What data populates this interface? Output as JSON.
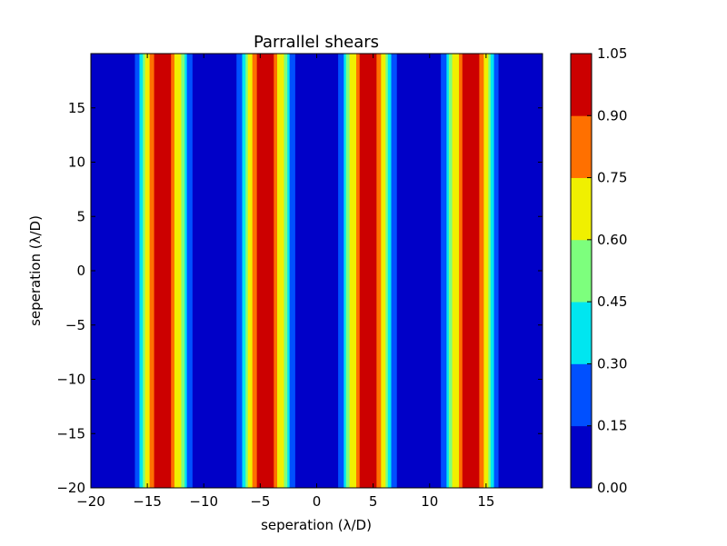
{
  "chart_data": {
    "type": "heatmap",
    "subtype": "filled-contour",
    "title": "Parrallel shears",
    "xlabel": "seperation (λ/D)",
    "ylabel": "seperation (λ/D)",
    "xlim": [
      -20,
      20
    ],
    "ylim": [
      -20,
      20
    ],
    "x_ticks": [
      -20,
      -15,
      -10,
      -5,
      0,
      5,
      10,
      15
    ],
    "x_tick_labels": [
      "−20",
      "−15",
      "−10",
      "−5",
      "0",
      "5",
      "10",
      "15"
    ],
    "y_ticks": [
      -20,
      -15,
      -10,
      -5,
      0,
      5,
      10,
      15
    ],
    "y_tick_labels": [
      "−20",
      "−15",
      "−10",
      "−5",
      "0",
      "5",
      "10",
      "15"
    ],
    "grid": false,
    "pattern": "value varies only with x; constant along y",
    "band_centers_x": [
      -13.5,
      -4.5,
      4.5,
      13.5
    ],
    "colorbar": {
      "levels": [
        0.0,
        0.15,
        0.3,
        0.45,
        0.6,
        0.75,
        0.9,
        1.05
      ],
      "tick_labels": [
        "0.00",
        "0.15",
        "0.30",
        "0.45",
        "0.60",
        "0.75",
        "0.90",
        "1.05"
      ],
      "colors": [
        "#0000c8",
        "#0050ff",
        "#00e6f0",
        "#7dff7d",
        "#f0f000",
        "#ff7000",
        "#cc0000"
      ]
    },
    "x_segments": [
      {
        "x0": -20.0,
        "x1": -16.1,
        "level": 0
      },
      {
        "x0": -16.1,
        "x1": -15.7,
        "level": 1
      },
      {
        "x0": -15.7,
        "x1": -15.4,
        "level": 2
      },
      {
        "x0": -15.4,
        "x1": -15.2,
        "level": 3
      },
      {
        "x0": -15.2,
        "x1": -14.8,
        "level": 4
      },
      {
        "x0": -14.8,
        "x1": -14.4,
        "level": 5
      },
      {
        "x0": -14.4,
        "x1": -12.9,
        "level": 6
      },
      {
        "x0": -12.9,
        "x1": -12.6,
        "level": 5
      },
      {
        "x0": -12.6,
        "x1": -12.0,
        "level": 4
      },
      {
        "x0": -12.0,
        "x1": -11.7,
        "level": 3
      },
      {
        "x0": -11.7,
        "x1": -11.5,
        "level": 2
      },
      {
        "x0": -11.5,
        "x1": -11.0,
        "level": 1
      },
      {
        "x0": -11.0,
        "x1": -7.1,
        "level": 0
      },
      {
        "x0": -7.1,
        "x1": -6.6,
        "level": 1
      },
      {
        "x0": -6.6,
        "x1": -6.3,
        "level": 2
      },
      {
        "x0": -6.3,
        "x1": -6.1,
        "level": 3
      },
      {
        "x0": -6.1,
        "x1": -5.7,
        "level": 4
      },
      {
        "x0": -5.7,
        "x1": -5.3,
        "level": 5
      },
      {
        "x0": -5.3,
        "x1": -3.8,
        "level": 6
      },
      {
        "x0": -3.8,
        "x1": -3.5,
        "level": 5
      },
      {
        "x0": -3.5,
        "x1": -2.9,
        "level": 4
      },
      {
        "x0": -2.9,
        "x1": -2.6,
        "level": 3
      },
      {
        "x0": -2.6,
        "x1": -2.4,
        "level": 2
      },
      {
        "x0": -2.4,
        "x1": -1.9,
        "level": 1
      },
      {
        "x0": -1.9,
        "x1": 1.9,
        "level": 0
      },
      {
        "x0": 1.9,
        "x1": 2.4,
        "level": 1
      },
      {
        "x0": 2.4,
        "x1": 2.6,
        "level": 2
      },
      {
        "x0": 2.6,
        "x1": 2.9,
        "level": 3
      },
      {
        "x0": 2.9,
        "x1": 3.5,
        "level": 4
      },
      {
        "x0": 3.5,
        "x1": 3.8,
        "level": 5
      },
      {
        "x0": 3.8,
        "x1": 5.3,
        "level": 6
      },
      {
        "x0": 5.3,
        "x1": 5.7,
        "level": 5
      },
      {
        "x0": 5.7,
        "x1": 6.1,
        "level": 4
      },
      {
        "x0": 6.1,
        "x1": 6.3,
        "level": 3
      },
      {
        "x0": 6.3,
        "x1": 6.6,
        "level": 2
      },
      {
        "x0": 6.6,
        "x1": 7.1,
        "level": 1
      },
      {
        "x0": 7.1,
        "x1": 11.0,
        "level": 0
      },
      {
        "x0": 11.0,
        "x1": 11.5,
        "level": 1
      },
      {
        "x0": 11.5,
        "x1": 11.7,
        "level": 2
      },
      {
        "x0": 11.7,
        "x1": 12.0,
        "level": 3
      },
      {
        "x0": 12.0,
        "x1": 12.6,
        "level": 4
      },
      {
        "x0": 12.6,
        "x1": 12.9,
        "level": 5
      },
      {
        "x0": 12.9,
        "x1": 14.4,
        "level": 6
      },
      {
        "x0": 14.4,
        "x1": 14.8,
        "level": 5
      },
      {
        "x0": 14.8,
        "x1": 15.2,
        "level": 4
      },
      {
        "x0": 15.2,
        "x1": 15.4,
        "level": 3
      },
      {
        "x0": 15.4,
        "x1": 15.7,
        "level": 2
      },
      {
        "x0": 15.7,
        "x1": 16.1,
        "level": 1
      },
      {
        "x0": 16.1,
        "x1": 20.0,
        "level": 0
      }
    ]
  }
}
